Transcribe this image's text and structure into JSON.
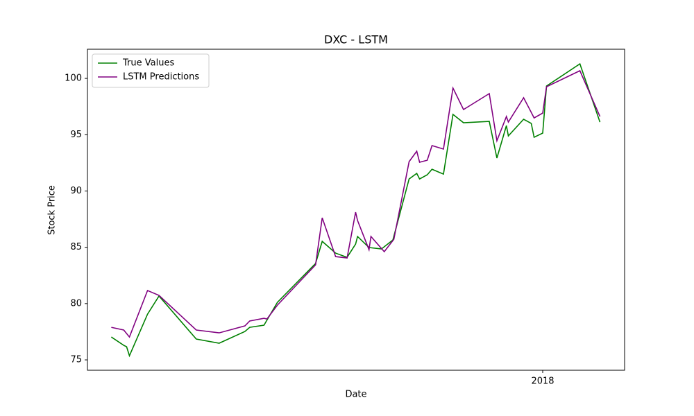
{
  "chart_data": {
    "type": "line",
    "title": "DXC - LSTM",
    "xlabel": "Date",
    "ylabel": "Stock Price",
    "xlim": [
      2017.523,
      2018.0858
    ],
    "xticks": [
      {
        "value": 2018,
        "label": "2018"
      }
    ],
    "ylim": [
      74.08,
      102.59
    ],
    "yticks": [
      75,
      80,
      85,
      90,
      95,
      100
    ],
    "legend": "upper left",
    "grid": false,
    "series": [
      {
        "name": "True Values",
        "color": "#008000",
        "x": [
          2017.548,
          2017.561,
          2017.564,
          2017.567,
          2017.586,
          2017.598,
          2017.637,
          2017.661,
          2017.688,
          2017.693,
          2017.708,
          2017.722,
          2017.762,
          2017.769,
          2017.783,
          2017.795,
          2017.804,
          2017.806,
          2017.818,
          2017.831,
          2017.843,
          2017.86,
          2017.868,
          2017.871,
          2017.879,
          2017.884,
          2017.896,
          2017.906,
          2017.917,
          2017.944,
          2017.952,
          2017.962,
          2017.964,
          2017.98,
          2017.988,
          2017.991,
          2018.0,
          2018.004,
          2018.039,
          2018.06
        ],
        "values": [
          77.03,
          76.29,
          76.17,
          75.37,
          79.06,
          80.67,
          76.85,
          76.48,
          77.52,
          77.89,
          78.08,
          80.11,
          83.56,
          85.53,
          84.48,
          84.11,
          85.28,
          85.96,
          84.98,
          84.85,
          85.65,
          91.07,
          91.56,
          91.07,
          91.44,
          91.93,
          91.5,
          96.8,
          96.06,
          96.18,
          92.92,
          95.81,
          94.89,
          96.37,
          96.0,
          94.77,
          95.14,
          99.32,
          101.29,
          96.12
        ]
      },
      {
        "name": "LSTM Predictions",
        "color": "#800080",
        "x": [
          2017.548,
          2017.561,
          2017.567,
          2017.586,
          2017.598,
          2017.637,
          2017.661,
          2017.688,
          2017.693,
          2017.708,
          2017.711,
          2017.722,
          2017.762,
          2017.769,
          2017.783,
          2017.795,
          2017.804,
          2017.806,
          2017.818,
          2017.82,
          2017.834,
          2017.844,
          2017.86,
          2017.868,
          2017.871,
          2017.879,
          2017.884,
          2017.896,
          2017.906,
          2017.917,
          2017.944,
          2017.952,
          2017.962,
          2017.964,
          2017.98,
          2017.988,
          2017.991,
          2018.0,
          2018.004,
          2018.039,
          2018.06
        ],
        "values": [
          77.89,
          77.65,
          77.03,
          81.16,
          80.73,
          77.65,
          77.4,
          78.02,
          78.45,
          78.69,
          78.63,
          79.86,
          83.44,
          87.62,
          84.17,
          84.05,
          88.12,
          87.38,
          84.79,
          85.96,
          84.61,
          85.71,
          92.61,
          93.53,
          92.55,
          92.73,
          94.03,
          93.72,
          99.14,
          97.23,
          98.65,
          94.46,
          96.61,
          96.12,
          98.28,
          96.98,
          96.49,
          96.92,
          99.26,
          100.68,
          96.61
        ]
      }
    ]
  }
}
